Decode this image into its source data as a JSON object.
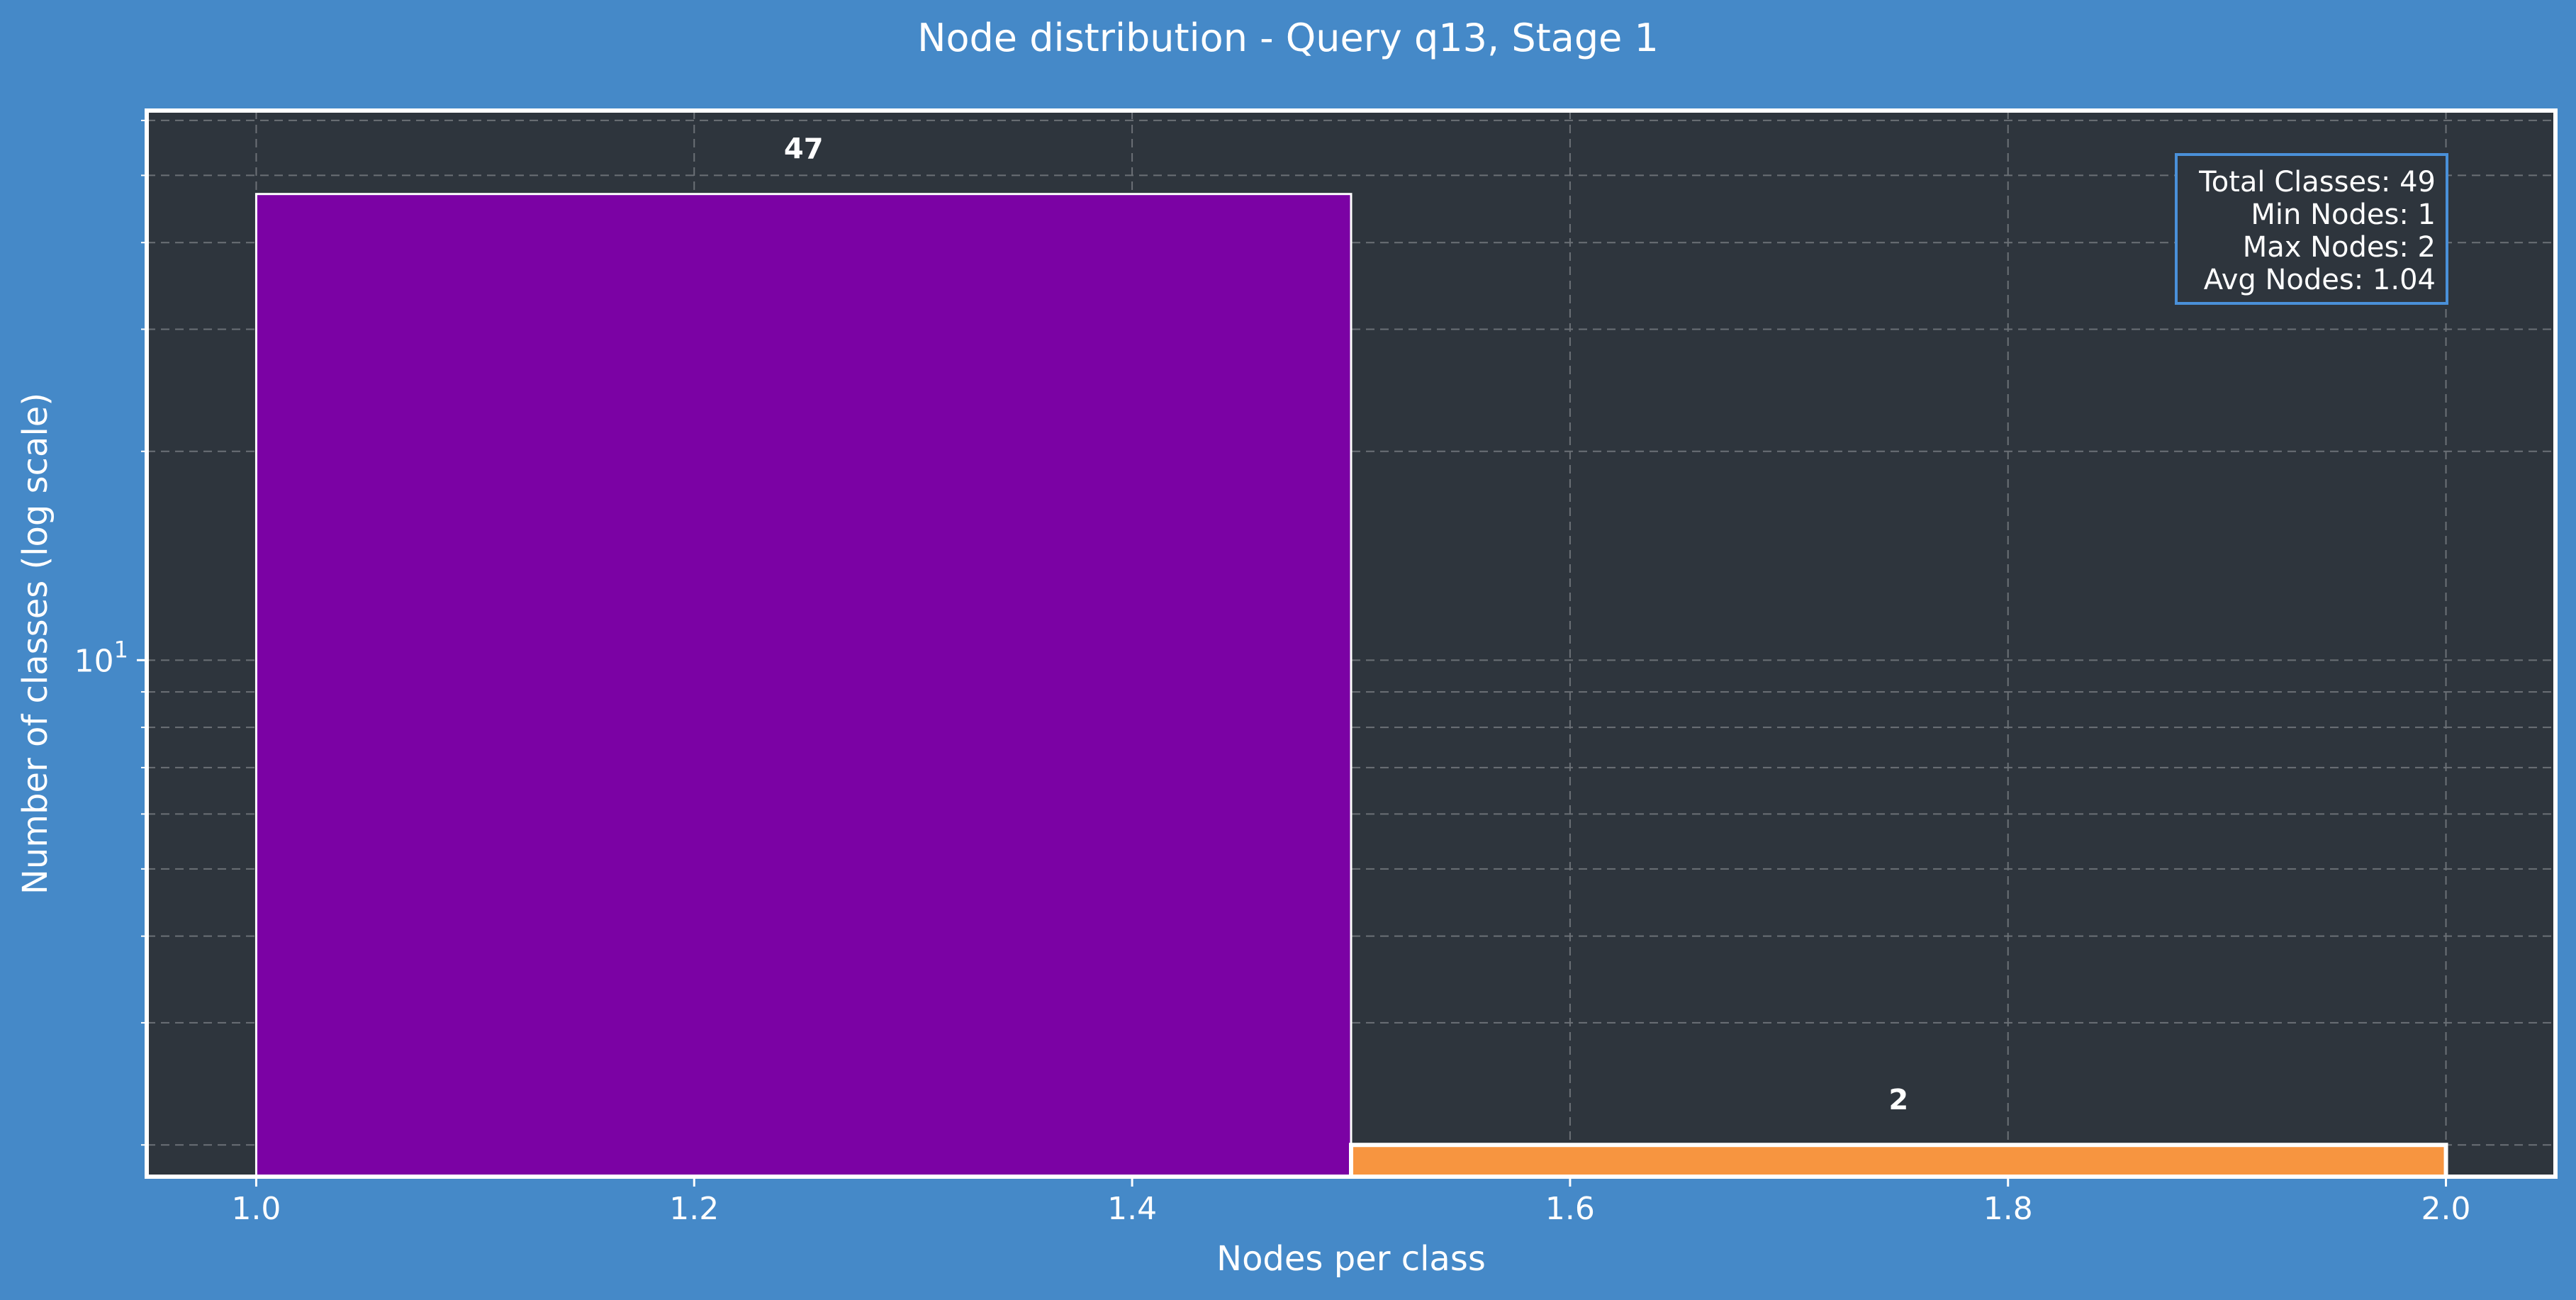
{
  "colors": {
    "figure_bg": "#4589c8",
    "plot_bg": "#2e353d",
    "grid": "#6b7076",
    "axis_frame": "#ffffff",
    "text": "#ffffff",
    "stats_box_border": "#4a90d9",
    "stats_box_bg": "#2e353d"
  },
  "chart_data": {
    "type": "bar",
    "title": "Node distribution - Query q13, Stage 1",
    "xlabel": "Nodes per class",
    "ylabel": "Number of classes (log scale)",
    "xlim": [
      0.95,
      2.05
    ],
    "ylim": [
      1.8,
      62
    ],
    "yscale": "log",
    "grid": true,
    "x_ticks": [
      1.0,
      1.2,
      1.4,
      1.6,
      1.8,
      2.0
    ],
    "x_tick_labels": [
      "1.0",
      "1.2",
      "1.4",
      "1.6",
      "1.8",
      "2.0"
    ],
    "y_major_tick": 10,
    "y_major_tick_label": {
      "base": "10",
      "exp": "1"
    },
    "y_minor_ticks": [
      2,
      3,
      4,
      5,
      6,
      7,
      8,
      9,
      20,
      30,
      40,
      50,
      60
    ],
    "bars": [
      {
        "x_start": 1.0,
        "x_end": 1.5,
        "value": 47,
        "label": "47",
        "color": "#7b02a4"
      },
      {
        "x_start": 1.5,
        "x_end": 2.0,
        "value": 2,
        "label": "2",
        "color": "#f79540"
      }
    ],
    "stats_box": {
      "position": "top-right",
      "lines": [
        "Total Classes: 49",
        "Min Nodes: 1",
        "Max Nodes: 2",
        "Avg Nodes: 1.04"
      ]
    }
  }
}
